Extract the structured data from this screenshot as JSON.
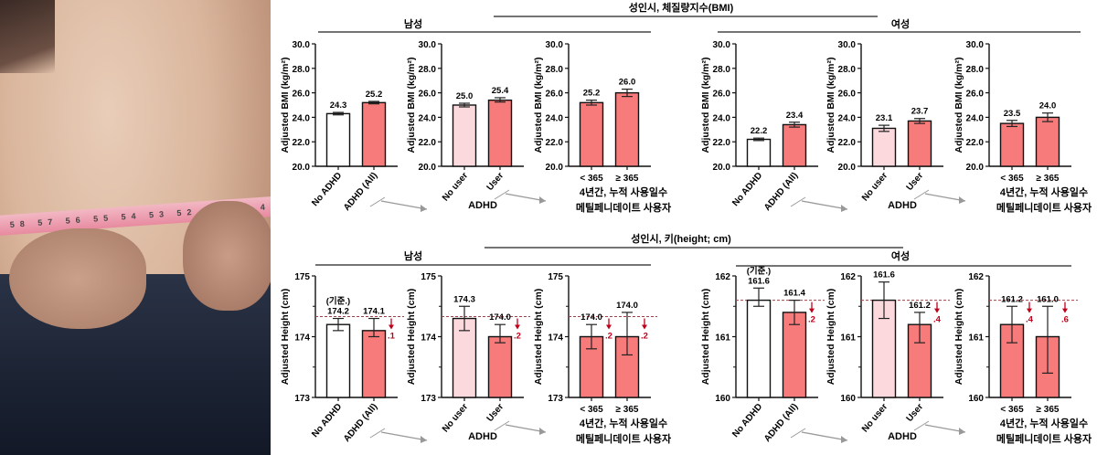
{
  "photo": {
    "description_label": "tape-measure-photo"
  },
  "rows": [
    {
      "title": "성인시, 체질량지수(BMI)",
      "groups": [
        "남성",
        "여성"
      ]
    },
    {
      "title": "성인시, 키(height; cm)",
      "groups": [
        "남성",
        "여성"
      ]
    }
  ],
  "colors": {
    "white": "#ffffff",
    "light_pink": "#fcd9dc",
    "red": "#f77b7b",
    "diff": "#c0001a",
    "ref_line": "#a0404a"
  },
  "chart_data": [
    {
      "type": "bar",
      "row": 0,
      "group": "남성",
      "ylabel": "Adjusted BMI (kg/m²)",
      "ylim": [
        20,
        30
      ],
      "ticks": [
        "20.0",
        "22.0",
        "24.0",
        "26.0",
        "28.0",
        "30.0"
      ],
      "tick_values": [
        20,
        22,
        24,
        26,
        28,
        30
      ],
      "bars": [
        {
          "label": "No ADHD",
          "value": 24.3,
          "text": "24.3",
          "err": [
            24.2,
            24.4
          ],
          "color": "white"
        },
        {
          "label": "ADHD (All)",
          "value": 25.2,
          "text": "25.2",
          "err": [
            25.1,
            25.3
          ],
          "color": "red"
        }
      ],
      "xstyle": "rotated"
    },
    {
      "type": "bar",
      "row": 0,
      "group": "남성",
      "ylabel": "Adjusted BMI (kg/m²)",
      "ylim": [
        20,
        30
      ],
      "ticks": [
        "20.0",
        "22.0",
        "24.0",
        "26.0",
        "28.0",
        "30.0"
      ],
      "tick_values": [
        20,
        22,
        24,
        26,
        28,
        30
      ],
      "bars": [
        {
          "label": "No user",
          "value": 25.0,
          "text": "25.0",
          "err": [
            24.85,
            25.15
          ],
          "color": "light_pink"
        },
        {
          "label": "User",
          "value": 25.4,
          "text": "25.4",
          "err": [
            25.25,
            25.6
          ],
          "color": "red"
        }
      ],
      "xstyle": "rotated",
      "caption": [
        "ADHD"
      ]
    },
    {
      "type": "bar",
      "row": 0,
      "group": "남성",
      "ylabel": "Adjusted BMI (kg/m²)",
      "ylim": [
        20,
        30
      ],
      "ticks": [
        "20.0",
        "22.0",
        "24.0",
        "26.0",
        "28.0",
        "30.0"
      ],
      "tick_values": [
        20,
        22,
        24,
        26,
        28,
        30
      ],
      "bars": [
        {
          "label": "< 365",
          "value": 25.2,
          "text": "25.2",
          "err": [
            25.0,
            25.4
          ],
          "color": "red"
        },
        {
          "label": "≥ 365",
          "value": 26.0,
          "text": "26.0",
          "err": [
            25.7,
            26.3
          ],
          "color": "red"
        }
      ],
      "xstyle": "flat",
      "caption": [
        "4년간, 누적 사용일수",
        "메틸페니데이트 사용자"
      ]
    },
    {
      "type": "bar",
      "row": 0,
      "group": "여성",
      "ylabel": "Adjusted BMI (kg/m²)",
      "ylim": [
        20,
        30
      ],
      "ticks": [
        "20.0",
        "22.0",
        "24.0",
        "26.0",
        "28.0",
        "30.0"
      ],
      "tick_values": [
        20,
        22,
        24,
        26,
        28,
        30
      ],
      "bars": [
        {
          "label": "No ADHD",
          "value": 22.2,
          "text": "22.2",
          "err": [
            22.1,
            22.3
          ],
          "color": "white"
        },
        {
          "label": "ADHD (All)",
          "value": 23.4,
          "text": "23.4",
          "err": [
            23.2,
            23.6
          ],
          "color": "red"
        }
      ],
      "xstyle": "rotated"
    },
    {
      "type": "bar",
      "row": 0,
      "group": "여성",
      "ylabel": "Adjusted BMI (kg/m²)",
      "ylim": [
        20,
        30
      ],
      "ticks": [
        "20.0",
        "22.0",
        "24.0",
        "26.0",
        "28.0",
        "30.0"
      ],
      "tick_values": [
        20,
        22,
        24,
        26,
        28,
        30
      ],
      "bars": [
        {
          "label": "No user",
          "value": 23.1,
          "text": "23.1",
          "err": [
            22.85,
            23.35
          ],
          "color": "light_pink"
        },
        {
          "label": "User",
          "value": 23.7,
          "text": "23.7",
          "err": [
            23.5,
            23.9
          ],
          "color": "red"
        }
      ],
      "xstyle": "rotated",
      "caption": [
        "ADHD"
      ]
    },
    {
      "type": "bar",
      "row": 0,
      "group": "여성",
      "ylabel": "Adjusted BMI (kg/m²)",
      "ylim": [
        20,
        30
      ],
      "ticks": [
        "20.0",
        "22.0",
        "24.0",
        "26.0",
        "28.0",
        "30.0"
      ],
      "tick_values": [
        20,
        22,
        24,
        26,
        28,
        30
      ],
      "bars": [
        {
          "label": "< 365",
          "value": 23.5,
          "text": "23.5",
          "err": [
            23.25,
            23.75
          ],
          "color": "red"
        },
        {
          "label": "≥ 365",
          "value": 24.0,
          "text": "24.0",
          "err": [
            23.65,
            24.35
          ],
          "color": "red"
        }
      ],
      "xstyle": "flat",
      "caption": [
        "4년간, 누적 사용일수",
        "메틸페니데이트 사용자"
      ]
    },
    {
      "type": "bar",
      "row": 1,
      "group": "남성",
      "ylabel": "Adjusted Height (cm)",
      "ylim": [
        173,
        175
      ],
      "ticks": [
        "173",
        "174",
        "175"
      ],
      "tick_values": [
        173,
        174,
        175
      ],
      "minor": [
        173.5,
        174.5
      ],
      "ref": 174.33,
      "bars": [
        {
          "label": "No ADHD",
          "value": 174.2,
          "text": "174.2",
          "note": "(기준.)",
          "err": [
            174.1,
            174.3
          ],
          "color": "white"
        },
        {
          "label": "ADHD (All)",
          "value": 174.1,
          "text": "174.1",
          "err": [
            174.0,
            174.3
          ],
          "color": "red",
          "diff": ".1"
        }
      ],
      "xstyle": "rotated"
    },
    {
      "type": "bar",
      "row": 1,
      "group": "남성",
      "ylabel": "Adjusted Height (cm)",
      "ylim": [
        173,
        175
      ],
      "ticks": [
        "173",
        "174",
        "175"
      ],
      "tick_values": [
        173,
        174,
        175
      ],
      "minor": [
        173.5,
        174.5
      ],
      "ref": 174.33,
      "bars": [
        {
          "label": "No user",
          "value": 174.3,
          "text": "174.3",
          "err": [
            174.1,
            174.5
          ],
          "color": "light_pink"
        },
        {
          "label": "User",
          "value": 174.0,
          "text": "174.0",
          "err": [
            173.9,
            174.2
          ],
          "color": "red",
          "diff": ".2"
        }
      ],
      "xstyle": "rotated",
      "caption": [
        "ADHD"
      ]
    },
    {
      "type": "bar",
      "row": 1,
      "group": "남성",
      "ylabel": "Adjusted Height (cm)",
      "ylim": [
        173,
        175
      ],
      "ticks": [
        "173",
        "174",
        "175"
      ],
      "tick_values": [
        173,
        174,
        175
      ],
      "minor": [
        173.5,
        174.5
      ],
      "ref": 174.33,
      "bars": [
        {
          "label": "< 365",
          "value": 174.0,
          "text": "174.0",
          "err": [
            173.8,
            174.2
          ],
          "color": "red",
          "diff": ".2"
        },
        {
          "label": "≥ 365",
          "value": 174.0,
          "text": "174.0",
          "err": [
            173.7,
            174.4
          ],
          "color": "red",
          "diff": ".2"
        }
      ],
      "xstyle": "flat",
      "caption": [
        "4년간, 누적 사용일수",
        "메틸페니데이트 사용자"
      ]
    },
    {
      "type": "bar",
      "row": 1,
      "group": "여성",
      "ylabel": "Adjusted Height (cm)",
      "ylim": [
        160,
        162
      ],
      "ticks": [
        "160",
        "161",
        "162"
      ],
      "tick_values": [
        160,
        161,
        162
      ],
      "minor": [
        160.5,
        161.5
      ],
      "ref": 161.6,
      "bars": [
        {
          "label": "No ADHD",
          "value": 161.6,
          "text": "161.6",
          "note": "(기준.)",
          "err": [
            161.5,
            161.8
          ],
          "color": "white"
        },
        {
          "label": "ADHD (All)",
          "value": 161.4,
          "text": "161.4",
          "err": [
            161.2,
            161.6
          ],
          "color": "red",
          "diff": ".2"
        }
      ],
      "xstyle": "rotated"
    },
    {
      "type": "bar",
      "row": 1,
      "group": "여성",
      "ylabel": "Adjusted Height (cm)",
      "ylim": [
        160,
        162
      ],
      "ticks": [
        "160",
        "161",
        "162"
      ],
      "tick_values": [
        160,
        161,
        162
      ],
      "minor": [
        160.5,
        161.5
      ],
      "ref": 161.6,
      "bars": [
        {
          "label": "No user",
          "value": 161.6,
          "text": "161.6",
          "err": [
            161.3,
            161.9
          ],
          "color": "light_pink"
        },
        {
          "label": "User",
          "value": 161.2,
          "text": "161.2",
          "err": [
            160.9,
            161.4
          ],
          "color": "red",
          "diff": ".4"
        }
      ],
      "xstyle": "rotated",
      "caption": [
        "ADHD"
      ]
    },
    {
      "type": "bar",
      "row": 1,
      "group": "여성",
      "ylabel": "Adjusted Height (cm)",
      "ylim": [
        160,
        162
      ],
      "ticks": [
        "160",
        "161",
        "162"
      ],
      "tick_values": [
        160,
        161,
        162
      ],
      "minor": [
        160.5,
        161.5
      ],
      "ref": 161.6,
      "bars": [
        {
          "label": "< 365",
          "value": 161.2,
          "text": "161.2",
          "err": [
            160.9,
            161.5
          ],
          "color": "red",
          "diff": ".4"
        },
        {
          "label": "≥ 365",
          "value": 161.0,
          "text": "161.0",
          "err": [
            160.4,
            161.5
          ],
          "color": "red",
          "diff": ".6"
        }
      ],
      "xstyle": "flat",
      "caption": [
        "4년간, 누적 사용일수",
        "메틸페니데이트 사용자"
      ]
    }
  ]
}
